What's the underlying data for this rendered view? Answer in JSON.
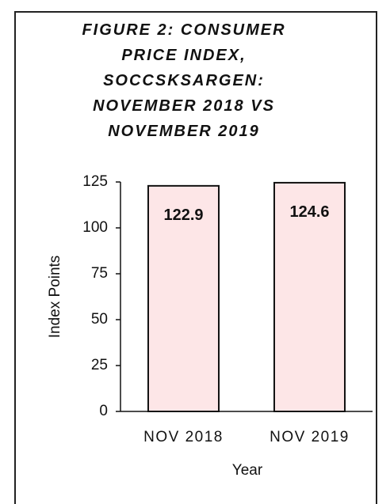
{
  "chart_data": {
    "type": "bar",
    "title": "FIGURE 2: CONSUMER PRICE INDEX, SOCCSKSARGEN: NOVEMBER 2018 VS NOVEMBER 2019",
    "categories": [
      "NOV 2018",
      "NOV 2019"
    ],
    "values": [
      122.9,
      124.6
    ],
    "color": "#fde6e7",
    "ylim": [
      0,
      125
    ],
    "yticks": [
      0,
      25,
      50,
      75,
      100,
      125
    ],
    "xlabel": "Year",
    "ylabel": "Index Points",
    "grid": false
  }
}
